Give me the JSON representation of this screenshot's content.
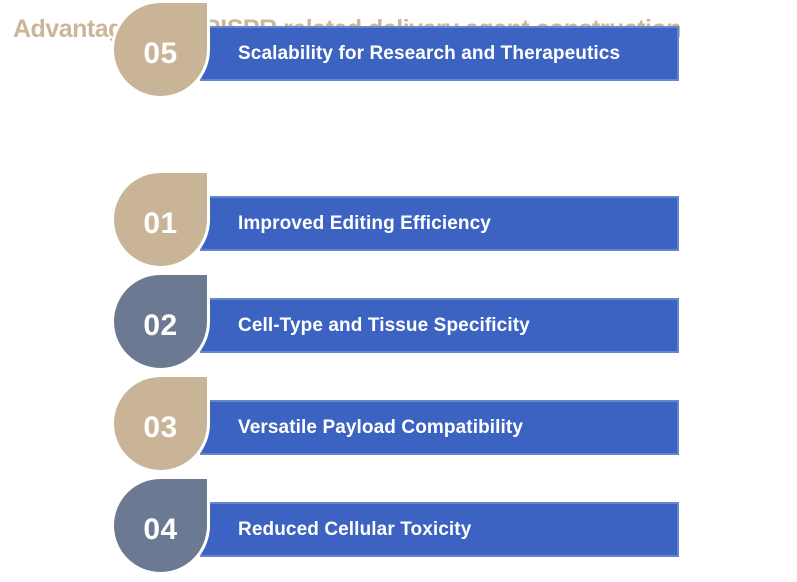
{
  "title": {
    "text": "Advantages of CRISPR related delivery agent construction",
    "color": "#cbb69a"
  },
  "colors": {
    "bar_blue": "#3c63c2",
    "drop_tan": "#cab497",
    "drop_gray": "#6b7a92",
    "bar_text": "#ffffff",
    "number_text": "#ffffff",
    "background": "#ffffff",
    "drop_outline": "#ffffff"
  },
  "items": [
    {
      "number": "01",
      "label": "Improved Editing Efficiency",
      "drop_color": "#cab497"
    },
    {
      "number": "02",
      "label": "Cell-Type and Tissue Specificity",
      "drop_color": "#6b7a92"
    },
    {
      "number": "03",
      "label": "Versatile Payload Compatibility",
      "drop_color": "#cab497"
    },
    {
      "number": "04",
      "label": "Reduced Cellular Toxicity",
      "drop_color": "#6b7a92"
    },
    {
      "number": "05",
      "label": "Scalability for Research and Therapeutics",
      "drop_color": "#cab497"
    }
  ]
}
